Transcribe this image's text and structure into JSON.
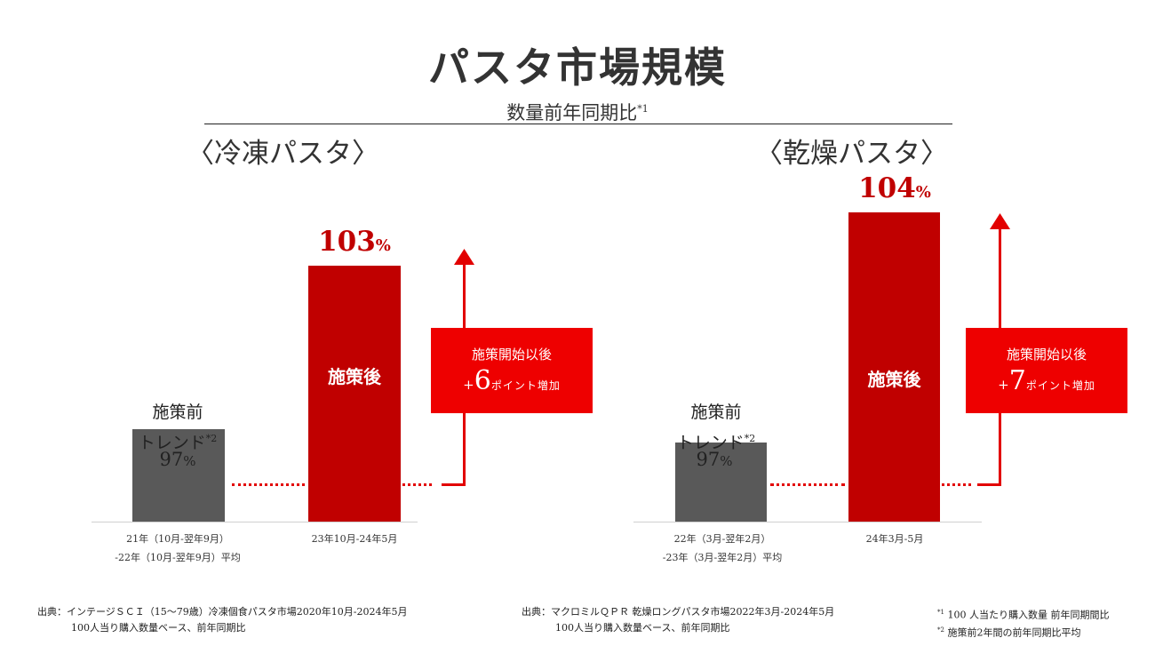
{
  "title": "パスタ市場規模",
  "subtitle": "数量前年同期比",
  "subtitle_note_mark": "*1",
  "colors": {
    "red": "#c00000",
    "bright_red": "#ee0000",
    "grey": "#595959"
  },
  "chart_data": [
    {
      "type": "bar",
      "title": "〈冷凍パスタ〉",
      "categories": [
        "21年（10月-翌年9月）-22年（10月-翌年9月）平均",
        "23年10月-24年5月"
      ],
      "category_lines": [
        [
          "21年（10月-翌年9月）",
          "-22年（10月-翌年9月）平均"
        ],
        [
          "23年10月-24年5月"
        ]
      ],
      "values": [
        97,
        103
      ],
      "unit": "%",
      "bar_labels": [
        "施策前",
        "施策後"
      ],
      "before_label_line1": "施策前",
      "before_label_line2": "トレンド",
      "before_note_mark": "*2",
      "after_label": "施策後",
      "callout_line1": "施策開始以後",
      "callout_prefix": "+",
      "callout_value": "6",
      "callout_suffix": "ポイント増加"
    },
    {
      "type": "bar",
      "title": "〈乾燥パスタ〉",
      "categories": [
        "22年（3月-翌年2月）-23年（3月-翌年2月）平均",
        "24年3月-5月"
      ],
      "category_lines": [
        [
          "22年（3月-翌年2月）",
          "-23年（3月-翌年2月）平均"
        ],
        [
          "24年3月-5月"
        ]
      ],
      "values": [
        97,
        104
      ],
      "unit": "%",
      "bar_labels": [
        "施策前",
        "施策後"
      ],
      "before_label_line1": "施策前",
      "before_label_line2": "トレンド",
      "before_note_mark": "*2",
      "after_label": "施策後",
      "callout_line1": "施策開始以後",
      "callout_prefix": "+",
      "callout_value": "7",
      "callout_suffix": "ポイント増加"
    }
  ],
  "sources": [
    {
      "line1": "出典：インテージＳＣＩ（15～79歳）冷凍個食パスタ市場2020年10月-2024年5月",
      "line2": "100人当り購入数量ベース、前年同期比"
    },
    {
      "line1": "出典：マクロミルＱＰＲ 乾燥ロングパスタ市場2022年3月-2024年5月",
      "line2": "100人当り購入数量ベース、前年同期比"
    }
  ],
  "notes": [
    {
      "mark": "*1",
      "text": "100 人当たり購入数量 前年同期間比"
    },
    {
      "mark": "*2",
      "text": "施策前2年間の前年同期比平均"
    }
  ]
}
